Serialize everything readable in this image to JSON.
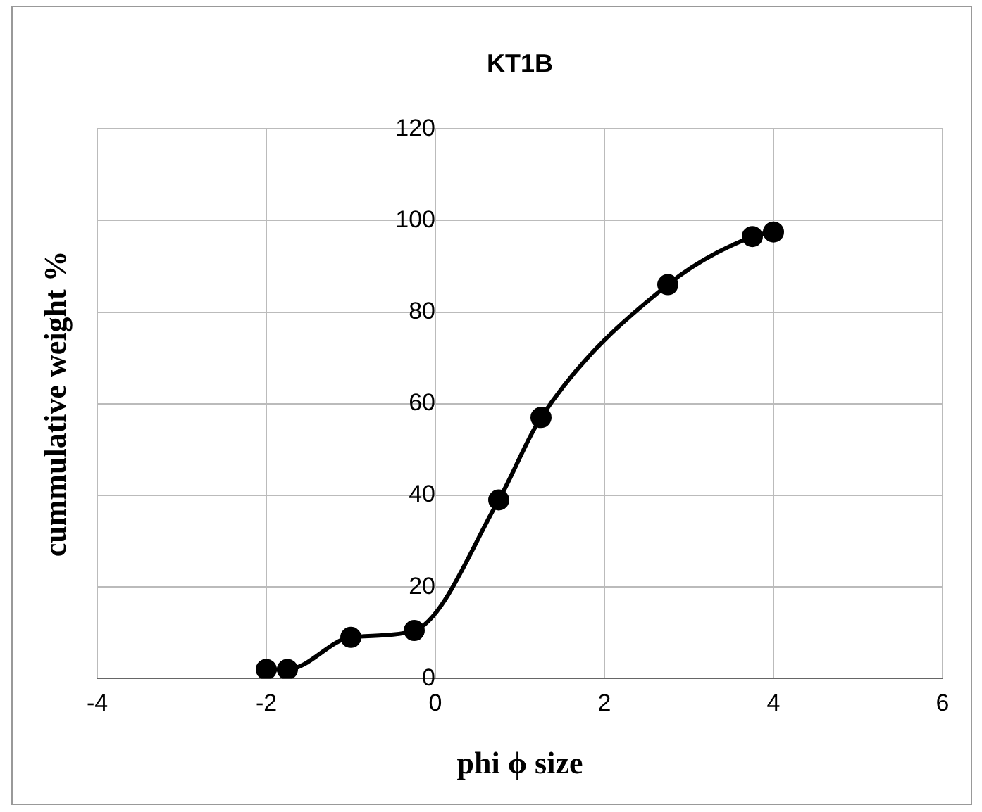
{
  "chart_data": {
    "type": "line",
    "title": "KT1B",
    "xlabel": "phi ϕ size",
    "ylabel": "cummulative weight %",
    "x": [
      -2,
      -1.75,
      -1,
      -0.25,
      0.75,
      1.25,
      2.75,
      3.75,
      4
    ],
    "series": [
      {
        "color": "#000000",
        "values": [
          2,
          2,
          9,
          10.5,
          39,
          57,
          86,
          96.5,
          97.5
        ]
      }
    ],
    "xlim": [
      -4,
      6
    ],
    "xticks": [
      -4,
      -2,
      0,
      2,
      4,
      6
    ],
    "ylim": [
      0,
      120
    ],
    "yticks": [
      0,
      20,
      40,
      60,
      80,
      100,
      120
    ],
    "grid": true,
    "marker": "circle",
    "line_style": "solid",
    "legend": false
  }
}
